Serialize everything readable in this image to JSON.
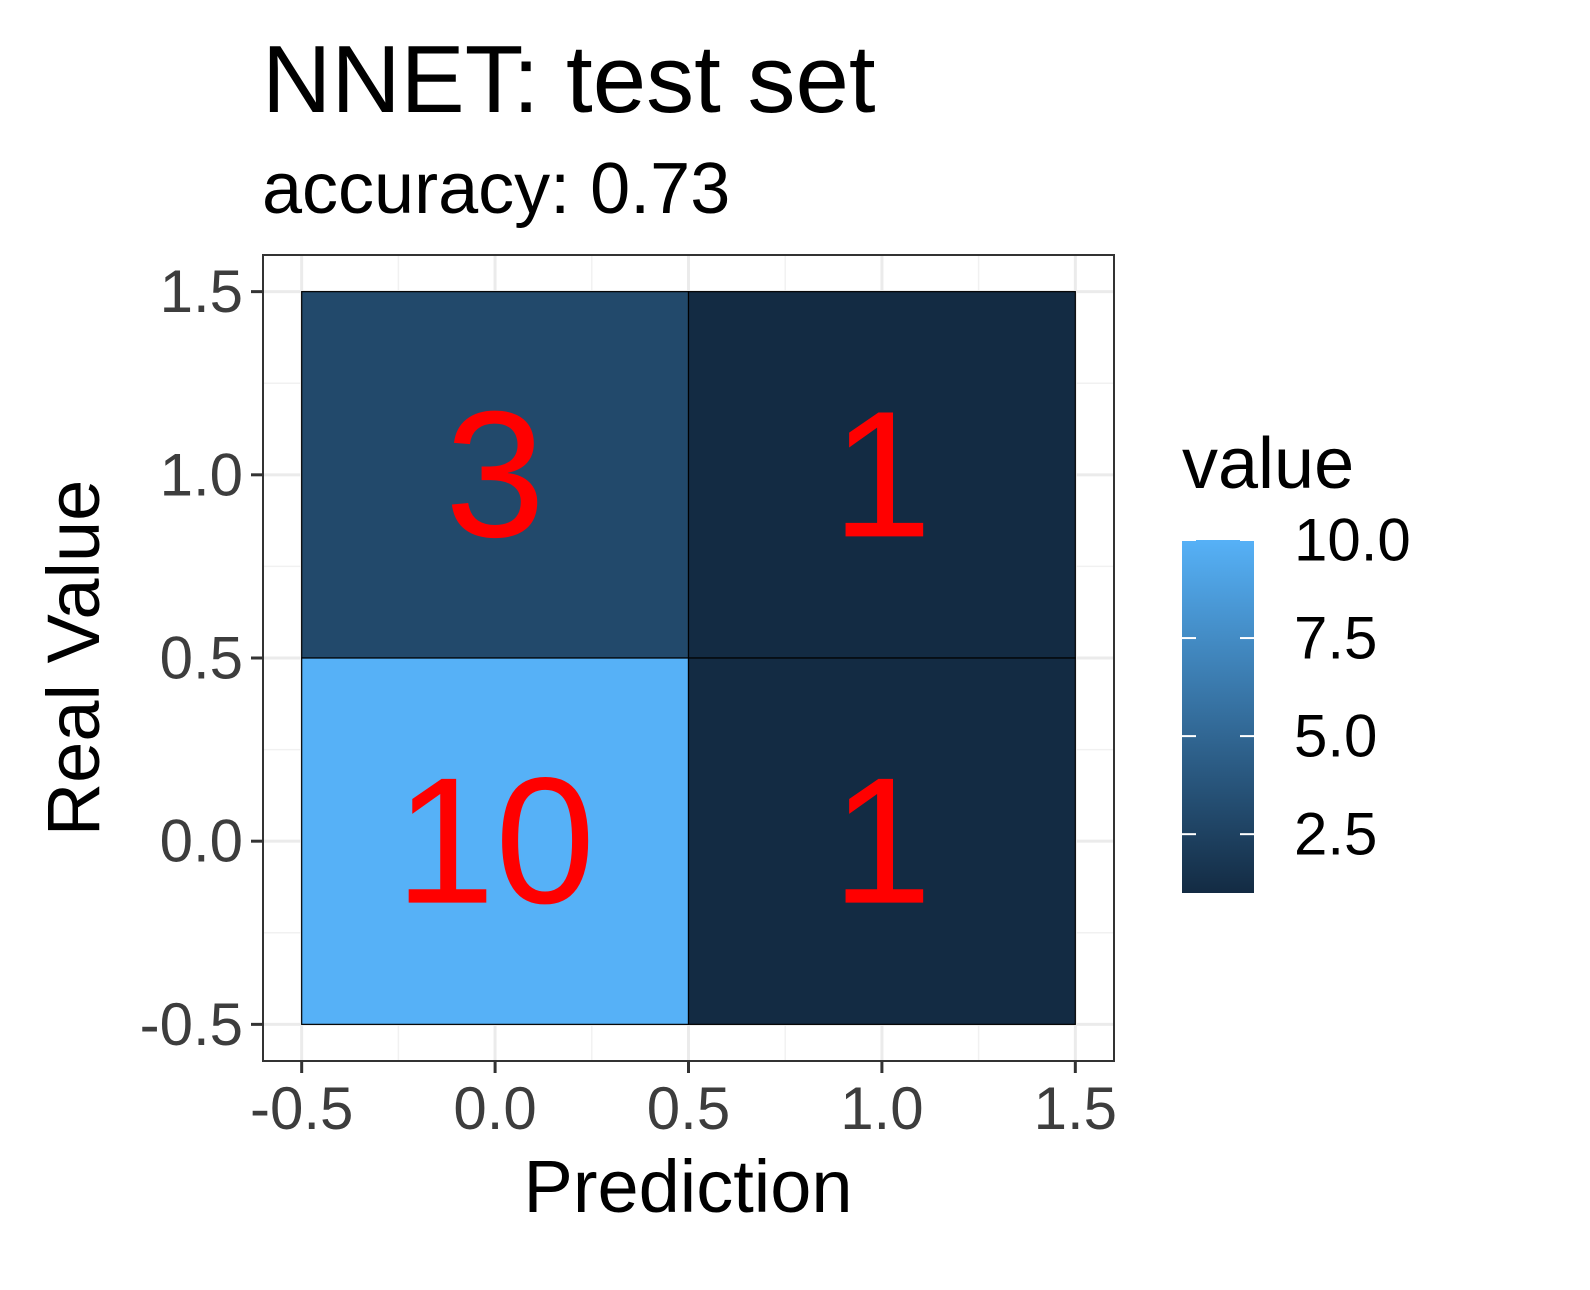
{
  "chart_data": {
    "type": "heatmap",
    "title": "NNET: test set",
    "subtitle": "accuracy: 0.73",
    "xlabel": "Prediction",
    "ylabel": "Real Value",
    "xlim": [
      -0.6,
      1.6
    ],
    "ylim": [
      -0.6,
      1.6
    ],
    "x_ticks": [
      -0.5,
      0.0,
      0.5,
      1.0,
      1.5
    ],
    "y_ticks": [
      -0.5,
      0.0,
      0.5,
      1.0,
      1.5
    ],
    "x_tick_labels": [
      "-0.5",
      "0.0",
      "0.5",
      "1.0",
      "1.5"
    ],
    "y_tick_labels": [
      "-0.5",
      "0.0",
      "0.5",
      "1.0",
      "1.5"
    ],
    "cells": [
      {
        "x": 0,
        "y": 1,
        "value": 3,
        "label": "3"
      },
      {
        "x": 1,
        "y": 1,
        "value": 1,
        "label": "1"
      },
      {
        "x": 0,
        "y": 0,
        "value": 10,
        "label": "10"
      },
      {
        "x": 1,
        "y": 0,
        "value": 1,
        "label": "1"
      }
    ],
    "legend": {
      "title": "value",
      "position": "right",
      "range": [
        1,
        10
      ],
      "ticks": [
        2.5,
        5.0,
        7.5,
        10.0
      ],
      "tick_labels": [
        "2.5",
        "5.0",
        "7.5",
        "10.0"
      ],
      "low_color": "#132b43",
      "high_color": "#56b1f7"
    },
    "grid": true,
    "cell_text_color": "#ff0000"
  }
}
